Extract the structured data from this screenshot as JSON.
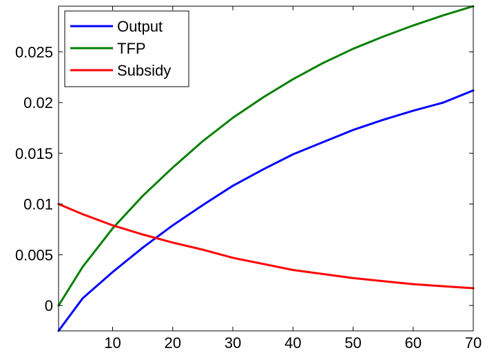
{
  "chart_data": {
    "type": "line",
    "title": "",
    "xlabel": "",
    "ylabel": "",
    "xlim": [
      1,
      70
    ],
    "ylim": [
      -0.0025,
      0.0295
    ],
    "grid": false,
    "legend_placement": "top-left",
    "x_ticks": [
      10,
      20,
      30,
      40,
      50,
      60,
      70
    ],
    "x_tick_labels": [
      "10",
      "20",
      "30",
      "40",
      "50",
      "60",
      "70"
    ],
    "y_ticks": [
      0,
      0.005,
      0.01,
      0.015,
      0.02,
      0.025
    ],
    "y_tick_labels": [
      "0",
      "0.005",
      "0.01",
      "0.015",
      "0.02",
      "0.025"
    ],
    "x": [
      1,
      5,
      10,
      15,
      20,
      25,
      30,
      35,
      40,
      45,
      50,
      55,
      60,
      65,
      70
    ],
    "series": [
      {
        "name": "Output",
        "color": "#0000ff",
        "values": [
          -0.0025,
          0.0007,
          0.0033,
          0.0057,
          0.0079,
          0.0099,
          0.0118,
          0.0134,
          0.0149,
          0.0161,
          0.0173,
          0.0183,
          0.0192,
          0.02,
          0.0212
        ]
      },
      {
        "name": "TFP",
        "color": "#007f00",
        "values": [
          0,
          0.0038,
          0.0076,
          0.0108,
          0.0136,
          0.0162,
          0.0185,
          0.0205,
          0.0223,
          0.0239,
          0.0253,
          0.0265,
          0.0276,
          0.0286,
          0.0295
        ]
      },
      {
        "name": "Subsidy",
        "color": "#ff0000",
        "values": [
          0.01,
          0.009,
          0.0079,
          0.007,
          0.0062,
          0.0055,
          0.0047,
          0.0041,
          0.0035,
          0.0031,
          0.0027,
          0.0024,
          0.0021,
          0.0019,
          0.0017
        ]
      }
    ]
  }
}
